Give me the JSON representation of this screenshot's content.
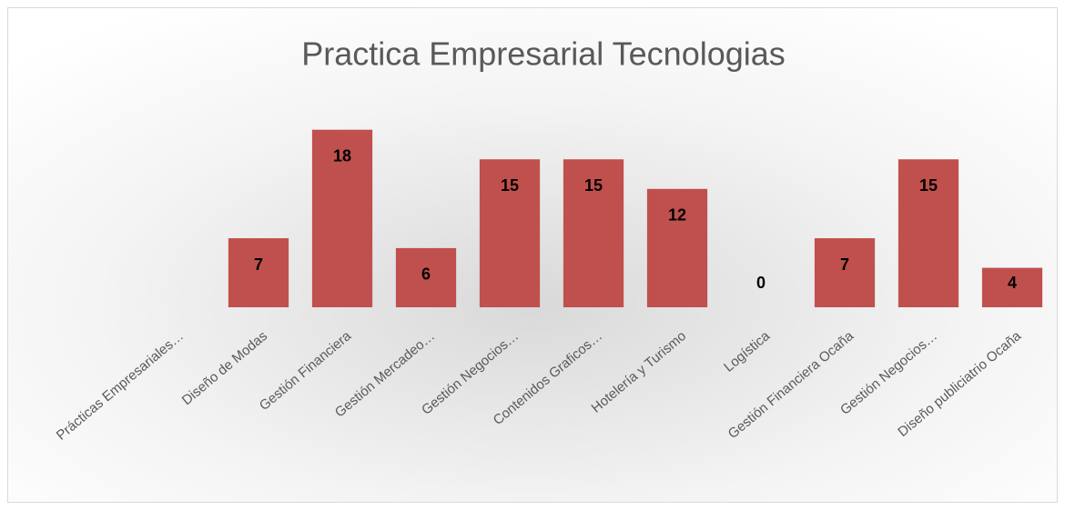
{
  "chart_data": {
    "type": "bar",
    "title": "Practica Empresarial Tecnologias",
    "categories": [
      "Prácticas Empresariales…",
      "Diseño de Modas",
      "Gestión Financiera",
      "Gestión Mercadeo…",
      "Gestión Negocios…",
      "Contenidos Graficos…",
      "Hotelería y Turismo",
      "Logística",
      "Gestión Financiera Ocaña",
      "Gestión Negocios…",
      "Diseño publiciatrio Ocaña"
    ],
    "values": [
      null,
      7,
      18,
      6,
      15,
      15,
      12,
      0,
      7,
      15,
      4
    ],
    "color": "#c0504d",
    "ylim": [
      0,
      20
    ]
  }
}
